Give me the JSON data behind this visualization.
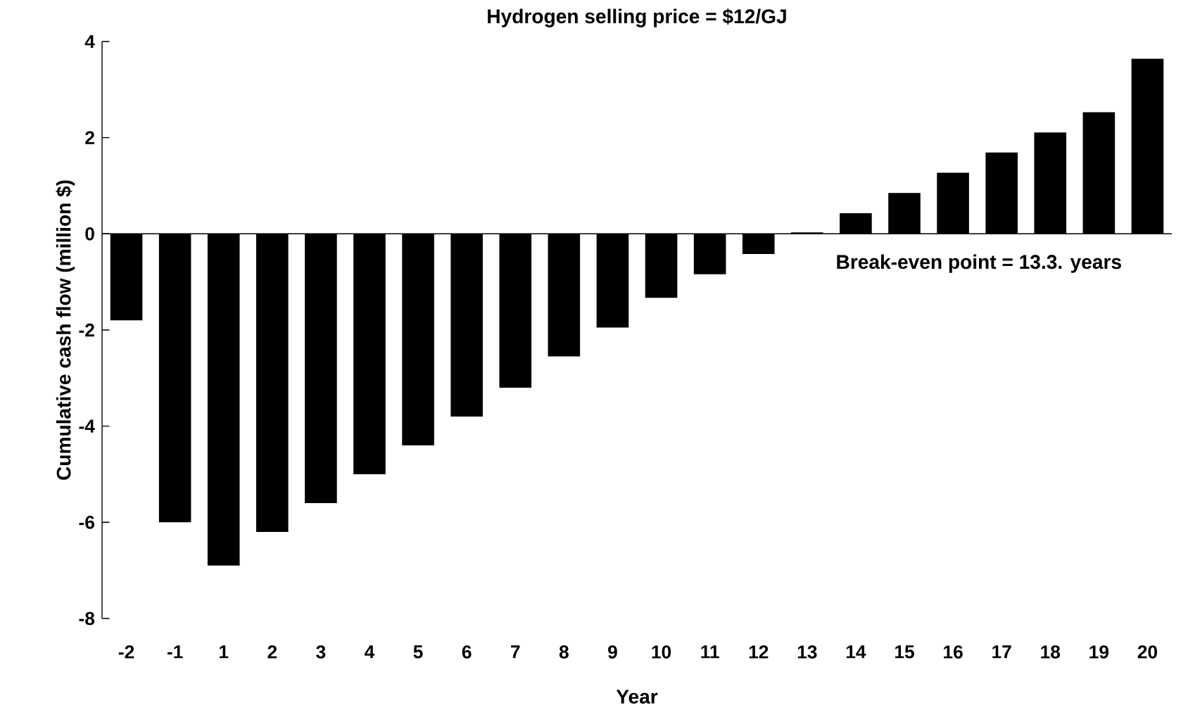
{
  "chart_data": {
    "type": "bar",
    "title": "Hydrogen selling price = $12/GJ",
    "xlabel": "Year",
    "ylabel": "Cumulative cash flow (million $)",
    "categories": [
      "-2",
      "-1",
      "1",
      "2",
      "3",
      "4",
      "5",
      "6",
      "7",
      "8",
      "9",
      "10",
      "11",
      "12",
      "13",
      "14",
      "15",
      "16",
      "17",
      "18",
      "19",
      "20"
    ],
    "values": [
      -1.8,
      -6.0,
      -6.9,
      -6.2,
      -5.6,
      -5.0,
      -4.4,
      -3.8,
      -3.2,
      -2.55,
      -1.95,
      -1.33,
      -0.84,
      -0.42,
      0.03,
      0.43,
      0.85,
      1.27,
      1.69,
      2.11,
      2.53,
      3.64
    ],
    "color": "#000000",
    "ref_lines": [
      {
        "axis": "y",
        "value": 0,
        "color": "#000000"
      }
    ],
    "ylim": [
      -8,
      4
    ],
    "yticks": [
      -8,
      -6,
      -4,
      -2,
      0,
      2,
      4
    ],
    "grid": false,
    "annotations": [
      "Break-even point = 13.3. years"
    ]
  }
}
